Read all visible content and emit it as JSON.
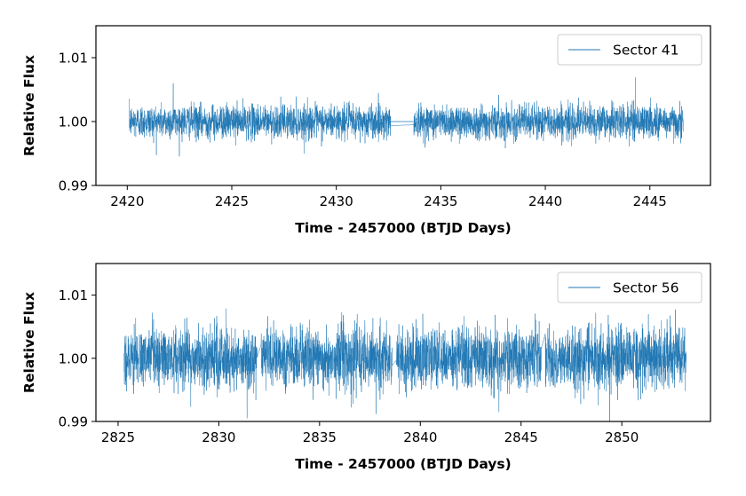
{
  "chart_data": [
    {
      "type": "line",
      "series": [
        {
          "name": "Sector 41",
          "color": "#1f77b4",
          "baseline": 1.0,
          "noise_sigma": 0.0013,
          "segments": [
            [
              2420.1,
              2432.6
            ],
            [
              2433.7,
              2446.6
            ]
          ],
          "gap_link": [
            [
              2432.6,
              1.0
            ],
            [
              2433.7,
              1.0
            ]
          ],
          "spikes": [
            [
              2422.2,
              1.006
            ],
            [
              2444.3,
              1.0069
            ],
            [
              2441.1,
              0.9968
            ]
          ]
        }
      ],
      "xlabel": "Time - 2457000 (BTJD Days)",
      "ylabel": "Relative Flux",
      "xlim": [
        2418.5,
        2447.9
      ],
      "ylim": [
        0.99,
        1.015
      ],
      "xticks": [
        "2420",
        "2425",
        "2430",
        "2435",
        "2440",
        "2445"
      ],
      "yticks": [
        "0.99",
        "1.00",
        "1.01"
      ],
      "legend": "top-right",
      "grid": false
    },
    {
      "type": "line",
      "series": [
        {
          "name": "Sector 56",
          "color": "#1f77b4",
          "baseline": 1.0,
          "noise_sigma": 0.0024,
          "segments": [
            [
              2825.3,
              2831.9
            ],
            [
              2832.1,
              2838.6
            ],
            [
              2838.8,
              2846.0
            ],
            [
              2846.2,
              2853.2
            ]
          ],
          "gap_link": [],
          "spikes": [
            [
              2849.4,
              0.9895
            ],
            [
              2831.4,
              0.9905
            ],
            [
              2837.8,
              0.9912
            ]
          ]
        }
      ],
      "xlabel": "Time - 2457000 (BTJD Days)",
      "ylabel": "Relative Flux",
      "xlim": [
        2823.9,
        2854.4
      ],
      "ylim": [
        0.99,
        1.015
      ],
      "xticks": [
        "2825",
        "2830",
        "2835",
        "2840",
        "2845",
        "2850"
      ],
      "yticks": [
        "0.99",
        "1.00",
        "1.01"
      ],
      "legend": "top-right",
      "grid": false
    }
  ]
}
